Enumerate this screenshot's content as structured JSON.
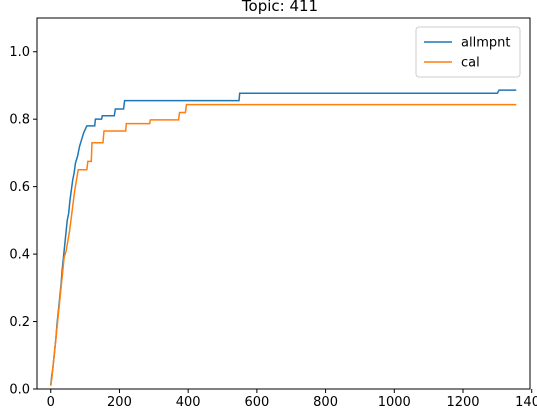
{
  "chart_data": {
    "type": "line",
    "title": "Topic: 411",
    "xlabel": "",
    "ylabel": "",
    "xlim": [
      -40,
      1395
    ],
    "ylim": [
      0.0,
      1.1
    ],
    "xticks": [
      0,
      200,
      400,
      600,
      800,
      1000,
      1200,
      1400
    ],
    "xtick_labels": [
      "0",
      "200",
      "400",
      "600",
      "800",
      "1000",
      "1200",
      "1400"
    ],
    "yticks": [
      0.0,
      0.2,
      0.4,
      0.6,
      0.8,
      1.0
    ],
    "ytick_labels": [
      "0.0",
      "0.2",
      "0.4",
      "0.6",
      "0.8",
      "1.0"
    ],
    "grid": false,
    "legend_position": "top-right",
    "series": [
      {
        "name": "allmpnt",
        "color": "#1f77b4",
        "points": [
          [
            0,
            0.01
          ],
          [
            3,
            0.04
          ],
          [
            6,
            0.06
          ],
          [
            9,
            0.09
          ],
          [
            12,
            0.12
          ],
          [
            15,
            0.15
          ],
          [
            18,
            0.19
          ],
          [
            21,
            0.22
          ],
          [
            24,
            0.25
          ],
          [
            27,
            0.28
          ],
          [
            30,
            0.31
          ],
          [
            33,
            0.35
          ],
          [
            36,
            0.38
          ],
          [
            39,
            0.41
          ],
          [
            42,
            0.44
          ],
          [
            45,
            0.47
          ],
          [
            48,
            0.5
          ],
          [
            52,
            0.52
          ],
          [
            56,
            0.56
          ],
          [
            60,
            0.59
          ],
          [
            64,
            0.62
          ],
          [
            68,
            0.64
          ],
          [
            72,
            0.67
          ],
          [
            78,
            0.69
          ],
          [
            84,
            0.72
          ],
          [
            90,
            0.74
          ],
          [
            96,
            0.76
          ],
          [
            105,
            0.78
          ],
          [
            128,
            0.78
          ],
          [
            130,
            0.8
          ],
          [
            148,
            0.8
          ],
          [
            150,
            0.81
          ],
          [
            185,
            0.81
          ],
          [
            188,
            0.83
          ],
          [
            212,
            0.83
          ],
          [
            215,
            0.855
          ],
          [
            548,
            0.855
          ],
          [
            550,
            0.877
          ],
          [
            1300,
            0.877
          ],
          [
            1305,
            0.886
          ],
          [
            1355,
            0.886
          ]
        ]
      },
      {
        "name": "cal",
        "color": "#ff7f0e",
        "points": [
          [
            0,
            0.01
          ],
          [
            3,
            0.03
          ],
          [
            6,
            0.06
          ],
          [
            9,
            0.09
          ],
          [
            12,
            0.12
          ],
          [
            15,
            0.15
          ],
          [
            18,
            0.18
          ],
          [
            21,
            0.21
          ],
          [
            24,
            0.24
          ],
          [
            27,
            0.27
          ],
          [
            30,
            0.3
          ],
          [
            33,
            0.33
          ],
          [
            36,
            0.36
          ],
          [
            39,
            0.39
          ],
          [
            45,
            0.41
          ],
          [
            50,
            0.44
          ],
          [
            55,
            0.47
          ],
          [
            60,
            0.51
          ],
          [
            65,
            0.55
          ],
          [
            70,
            0.59
          ],
          [
            75,
            0.62
          ],
          [
            80,
            0.65
          ],
          [
            105,
            0.65
          ],
          [
            108,
            0.675
          ],
          [
            118,
            0.675
          ],
          [
            120,
            0.73
          ],
          [
            152,
            0.73
          ],
          [
            155,
            0.765
          ],
          [
            218,
            0.765
          ],
          [
            220,
            0.787
          ],
          [
            288,
            0.787
          ],
          [
            290,
            0.798
          ],
          [
            372,
            0.798
          ],
          [
            375,
            0.82
          ],
          [
            392,
            0.82
          ],
          [
            395,
            0.843
          ],
          [
            1355,
            0.843
          ]
        ]
      }
    ]
  }
}
